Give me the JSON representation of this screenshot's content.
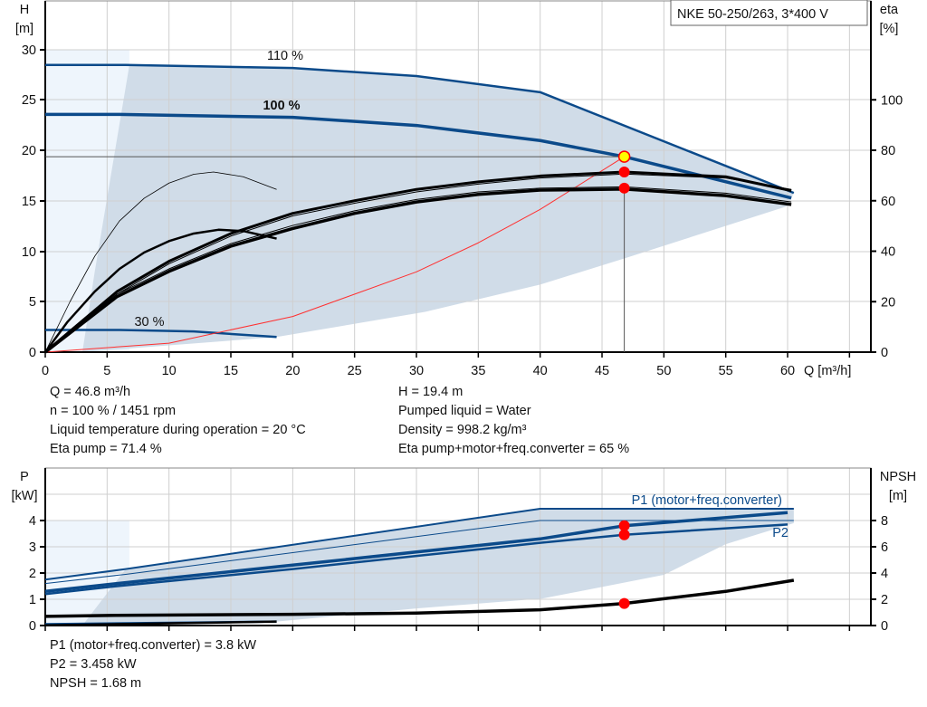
{
  "chart_data": [
    {
      "type": "line",
      "title": "NKE 50-250/263, 3*400 V",
      "xlabel": "Q [m³/h]",
      "ylabel": "H [m]",
      "ylabel_right": "eta [%]",
      "xlim": [
        0,
        65
      ],
      "ylim": [
        0,
        30
      ],
      "ylim_right": [
        0,
        100
      ],
      "xticks": [
        "0",
        "5",
        "10",
        "15",
        "20",
        "25",
        "30",
        "35",
        "40",
        "45",
        "50",
        "55",
        "60"
      ],
      "yticks": [
        "0",
        "5",
        "10",
        "15",
        "20",
        "25",
        "30"
      ],
      "yticks_right": [
        "0",
        "20",
        "40",
        "60",
        "80",
        "100"
      ],
      "grid": true,
      "curve_labels": [
        "110 %",
        "100 %",
        "30 %"
      ],
      "series": [
        {
          "name": "110 %",
          "axis": "left",
          "color": "#0b4a8a",
          "points": [
            [
              0,
              28.5
            ],
            [
              6.5,
              28.5
            ],
            [
              20,
              28.2
            ],
            [
              30,
              27.4
            ],
            [
              40,
              25.8
            ],
            [
              60.5,
              15.8
            ]
          ]
        },
        {
          "name": "100 %",
          "axis": "left",
          "color": "#0b4a8a",
          "points": [
            [
              0,
              23.6
            ],
            [
              6,
              23.6
            ],
            [
              20,
              23.3
            ],
            [
              30,
              22.5
            ],
            [
              40,
              21.0
            ],
            [
              46.8,
              19.4
            ],
            [
              60.3,
              15.3
            ]
          ]
        },
        {
          "name": "30 %",
          "axis": "left",
          "color": "#0b4a8a",
          "points": [
            [
              0,
              2.2
            ],
            [
              6,
              2.2
            ],
            [
              12,
              2.05
            ],
            [
              18.7,
              1.5
            ]
          ]
        },
        {
          "axis": "left",
          "color": "#ff3030",
          "points": [
            [
              0,
              0
            ],
            [
              10,
              0.89
            ],
            [
              20,
              3.54
            ],
            [
              30,
              7.97
            ],
            [
              35,
              10.85
            ],
            [
              40,
              14.17
            ],
            [
              46.8,
              19.4
            ]
          ]
        },
        {
          "axis": "right",
          "color": "#000000",
          "points": [
            [
              0,
              0
            ],
            [
              5.8,
              24
            ],
            [
              10,
              36
            ],
            [
              15,
              47
            ],
            [
              20,
              55
            ],
            [
              25,
              60
            ],
            [
              30,
              64.5
            ],
            [
              35,
              67.5
            ],
            [
              40,
              69.8
            ],
            [
              46.8,
              71.4
            ],
            [
              55,
              69.5
            ],
            [
              60.3,
              64
            ]
          ]
        },
        {
          "axis": "right",
          "color": "#000000",
          "points": [
            [
              0,
              0
            ],
            [
              5.8,
              23
            ],
            [
              10,
              35
            ],
            [
              15,
              46
            ],
            [
              20,
              54
            ],
            [
              25,
              59
            ],
            [
              30,
              63.5
            ],
            [
              35,
              66.6
            ],
            [
              40,
              69
            ],
            [
              46.8,
              70.6
            ],
            [
              55,
              69
            ],
            [
              60.3,
              64.5
            ]
          ]
        },
        {
          "axis": "right",
          "color": "#000000",
          "points": [
            [
              0,
              0
            ],
            [
              5.8,
              22
            ],
            [
              10,
              32
            ],
            [
              15,
              42
            ],
            [
              20,
              49
            ],
            [
              25,
              55
            ],
            [
              30,
              59.5
            ],
            [
              35,
              62.5
            ],
            [
              40,
              64.2
            ],
            [
              46.8,
              64.6
            ],
            [
              55,
              62
            ],
            [
              60.3,
              58.5
            ]
          ]
        },
        {
          "axis": "right",
          "color": "#000000",
          "points": [
            [
              0,
              0
            ],
            [
              5.8,
              23
            ],
            [
              10,
              33
            ],
            [
              15,
              43
            ],
            [
              20,
              50.2
            ],
            [
              25,
              56
            ],
            [
              30,
              60.5
            ],
            [
              35,
              63.5
            ],
            [
              40,
              65
            ],
            [
              46.8,
              65.5
            ],
            [
              55,
              63
            ],
            [
              60.3,
              59.5
            ]
          ]
        },
        {
          "axis": "right",
          "color": "#000000",
          "points": [
            [
              0,
              0
            ],
            [
              2,
              20
            ],
            [
              4,
              38
            ],
            [
              6,
              52
            ],
            [
              8,
              61
            ],
            [
              10,
              67
            ],
            [
              12,
              70.5
            ],
            [
              13.6,
              71.4
            ],
            [
              16,
              69.5
            ],
            [
              18.7,
              64.5
            ]
          ]
        },
        {
          "axis": "right",
          "color": "#000000",
          "points": [
            [
              0,
              0
            ],
            [
              1.8,
              12
            ],
            [
              4,
              24
            ],
            [
              6,
              33
            ],
            [
              8,
              39.5
            ],
            [
              10,
              44
            ],
            [
              12,
              47
            ],
            [
              14,
              48.5
            ],
            [
              16,
              48
            ],
            [
              18.7,
              45
            ]
          ]
        }
      ],
      "operating_point": {
        "Q": 46.8,
        "H": 19.4,
        "eta_pump": 71.4,
        "eta_total": 65
      },
      "operating_range": [
        [
          6.8,
          28.5
        ],
        [
          20,
          28.2
        ],
        [
          30,
          27.4
        ],
        [
          40,
          25.8
        ],
        [
          60.5,
          15.8
        ],
        [
          60,
          14.5
        ],
        [
          46.8,
          9.3
        ],
        [
          40,
          6.7
        ],
        [
          30.7,
          4
        ],
        [
          18.7,
          1.5
        ],
        [
          5,
          0.2
        ],
        [
          3,
          0
        ],
        [
          4,
          8
        ],
        [
          6.8,
          28.5
        ]
      ]
    },
    {
      "type": "line",
      "ylabel": "P [kW]",
      "ylabel_right": "NPSH [m]",
      "xlim": [
        0,
        65
      ],
      "ylim": [
        0,
        5
      ],
      "ylim_right": [
        0,
        10
      ],
      "yticks": [
        "0",
        "1",
        "2",
        "3",
        "4"
      ],
      "yticks_right": [
        "0",
        "2",
        "4",
        "6",
        "8"
      ],
      "grid": true,
      "series": [
        {
          "name": "P1 (motor+freq.converter)",
          "axis": "left",
          "color": "#0b4a8a",
          "points": [
            [
              0,
              1.3
            ],
            [
              5.8,
              1.6
            ],
            [
              20,
              2.3
            ],
            [
              30,
              2.8
            ],
            [
              40,
              3.3
            ],
            [
              46.8,
              3.8
            ],
            [
              60,
              4.3
            ]
          ]
        },
        {
          "name": "P2",
          "axis": "left",
          "color": "#0b4a8a",
          "points": [
            [
              0,
              1.2
            ],
            [
              5.8,
              1.5
            ],
            [
              20,
              2.15
            ],
            [
              30,
              2.65
            ],
            [
              40,
              3.15
            ],
            [
              46.8,
              3.458
            ],
            [
              60,
              3.85
            ]
          ]
        },
        {
          "axis": "left",
          "color": "#0b4a8a",
          "points": [
            [
              0,
              1.75
            ],
            [
              6.5,
              2.15
            ],
            [
              40,
              4.45
            ],
            [
              60.5,
              4.45
            ]
          ]
        },
        {
          "axis": "left",
          "color": "#0b4a8a",
          "points": [
            [
              0,
              1.6
            ],
            [
              6.5,
              1.95
            ],
            [
              40,
              4.0
            ],
            [
              60.5,
              4.0
            ]
          ]
        },
        {
          "axis": "left",
          "color": "#0b4a8a",
          "points": [
            [
              0,
              0.05
            ],
            [
              18.7,
              0.15
            ]
          ]
        },
        {
          "axis": "right",
          "color": "#000000",
          "points": [
            [
              0,
              0.7
            ],
            [
              5.8,
              0.78
            ],
            [
              20,
              0.85
            ],
            [
              30,
              0.95
            ],
            [
              40,
              1.2
            ],
            [
              46.8,
              1.68
            ],
            [
              55,
              2.6
            ],
            [
              60.5,
              3.45
            ]
          ]
        },
        {
          "axis": "right",
          "color": "#000000",
          "points": [
            [
              0,
              0.02
            ],
            [
              18.7,
              0.3
            ]
          ]
        }
      ],
      "operating_point": {
        "Q": 46.8,
        "P1": 3.8,
        "P2": 3.458,
        "NPSH": 1.68
      },
      "operating_range": [
        [
          6.5,
          2.15
        ],
        [
          40,
          4.45
        ],
        [
          60.5,
          4.45
        ],
        [
          60.5,
          3.9
        ],
        [
          55,
          3.1
        ],
        [
          50,
          1.93
        ],
        [
          40.2,
          1.03
        ],
        [
          30,
          0.65
        ],
        [
          18.7,
          0.15
        ],
        [
          5,
          0
        ],
        [
          3,
          0
        ],
        [
          6.5,
          2.15
        ]
      ]
    }
  ],
  "info_top_left": [
    "Q = 46.8 m³/h",
    "n = 100 % / 1451 rpm",
    "Liquid temperature during operation = 20 °C",
    "Eta pump = 71.4 %"
  ],
  "info_top_right": [
    "H = 19.4 m",
    "Pumped liquid = Water",
    "Density = 998.2 kg/m³",
    "Eta pump+motor+freq.converter = 65 %"
  ],
  "info_bottom": [
    "P1 (motor+freq.converter) = 3.8 kW",
    "P2 = 3.458 kW",
    "NPSH = 1.68 m"
  ],
  "colors": {
    "curve": "#0b4a8a",
    "range_fill": "#d0dce8",
    "light_fill": "#eef5fc",
    "point": "#ff0000",
    "duty_point": "#ffff00"
  }
}
